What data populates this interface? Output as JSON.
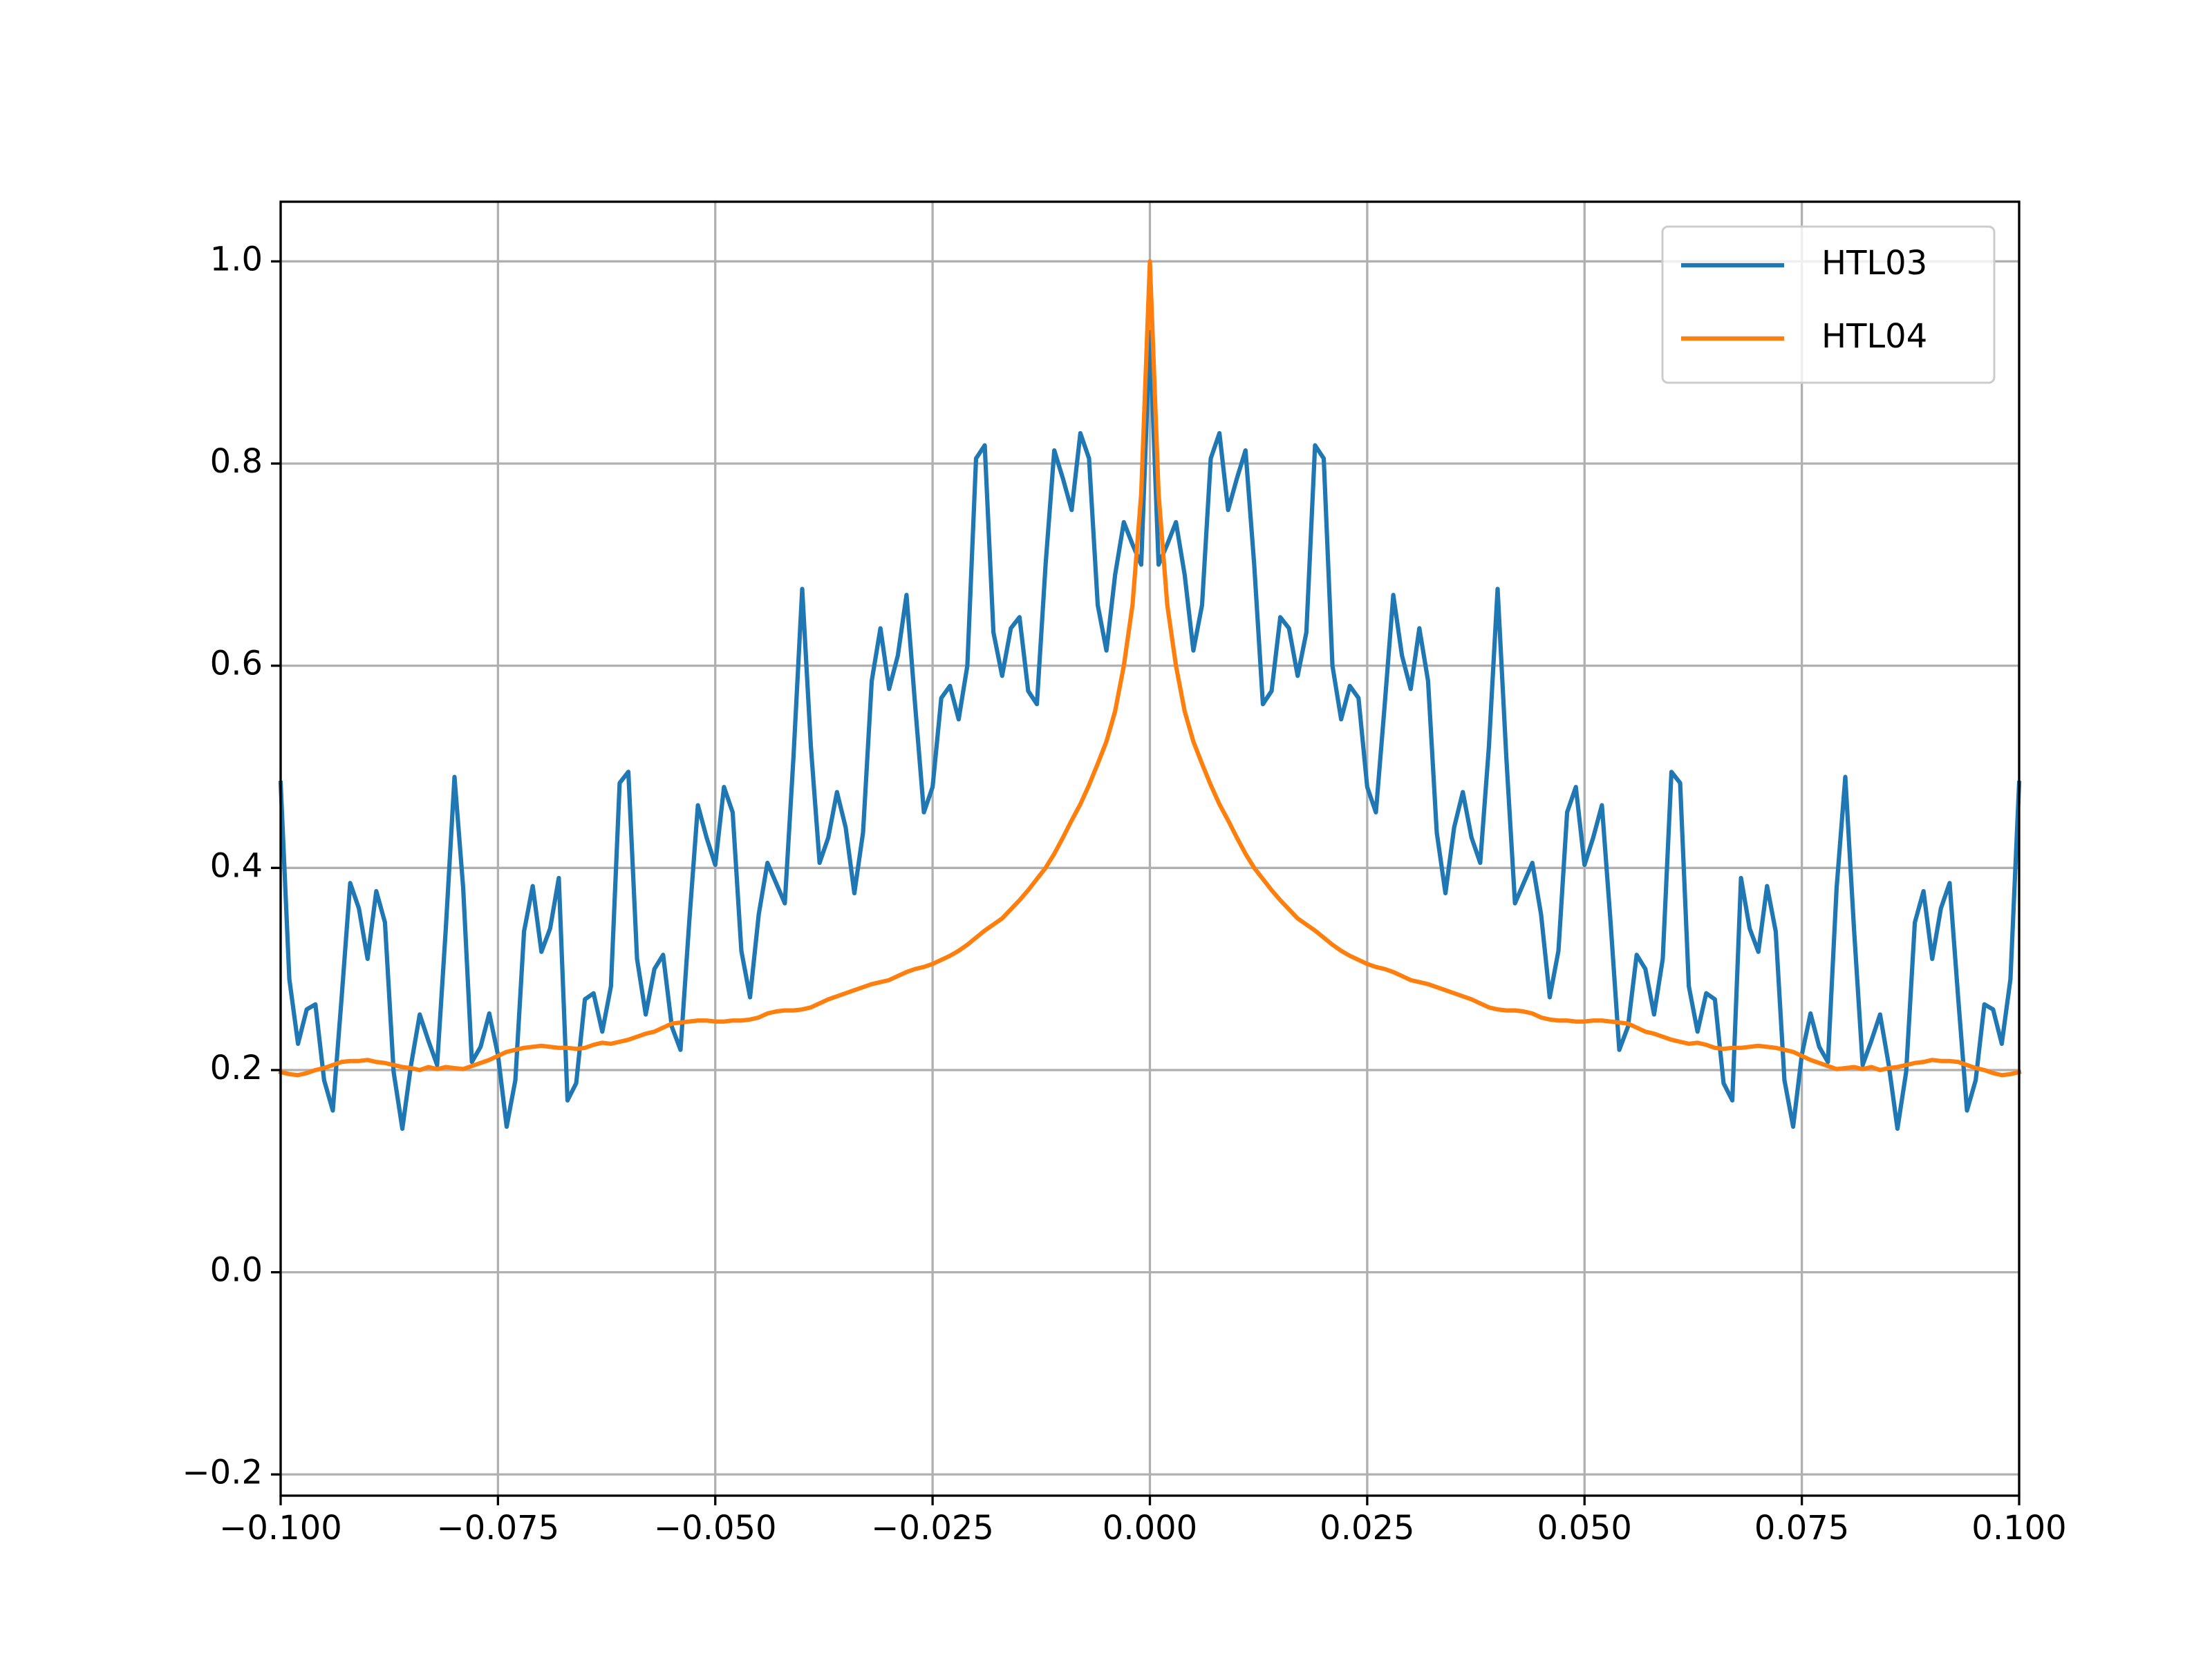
{
  "chart_data": {
    "type": "line",
    "x": [
      -0.1,
      -0.099,
      -0.098,
      -0.097,
      -0.096,
      -0.095,
      -0.094,
      -0.093,
      -0.092,
      -0.091,
      -0.09,
      -0.089,
      -0.088,
      -0.087,
      -0.086,
      -0.085,
      -0.084,
      -0.083,
      -0.082,
      -0.081,
      -0.08,
      -0.079,
      -0.078,
      -0.077,
      -0.076,
      -0.075,
      -0.074,
      -0.073,
      -0.072,
      -0.071,
      -0.07,
      -0.069,
      -0.068,
      -0.067,
      -0.066,
      -0.065,
      -0.064,
      -0.063,
      -0.062,
      -0.061,
      -0.06,
      -0.059,
      -0.058,
      -0.057,
      -0.056,
      -0.055,
      -0.054,
      -0.053,
      -0.052,
      -0.051,
      -0.05,
      -0.049,
      -0.048,
      -0.047,
      -0.046,
      -0.045,
      -0.044,
      -0.043,
      -0.042,
      -0.041,
      -0.04,
      -0.039,
      -0.038,
      -0.037,
      -0.036,
      -0.035,
      -0.034,
      -0.033,
      -0.032,
      -0.031,
      -0.03,
      -0.029,
      -0.028,
      -0.027,
      -0.026,
      -0.025,
      -0.024,
      -0.023,
      -0.022,
      -0.021,
      -0.02,
      -0.019,
      -0.018,
      -0.017,
      -0.016,
      -0.015,
      -0.014,
      -0.013,
      -0.012,
      -0.011,
      -0.01,
      -0.009,
      -0.008,
      -0.007,
      -0.006,
      -0.005,
      -0.004,
      -0.003,
      -0.002,
      -0.001,
      0,
      0.001,
      0.002,
      0.003,
      0.004,
      0.005,
      0.006,
      0.007,
      0.008,
      0.009,
      0.01,
      0.011,
      0.012,
      0.013,
      0.014,
      0.015,
      0.016,
      0.017,
      0.018,
      0.019,
      0.02,
      0.021,
      0.022,
      0.023,
      0.024,
      0.025,
      0.026,
      0.027,
      0.028,
      0.029,
      0.03,
      0.031,
      0.032,
      0.033,
      0.034,
      0.035,
      0.036,
      0.037,
      0.038,
      0.039,
      0.04,
      0.041,
      0.042,
      0.043,
      0.044,
      0.045,
      0.046,
      0.047,
      0.048,
      0.049,
      0.05,
      0.051,
      0.052,
      0.053,
      0.054,
      0.055,
      0.056,
      0.057,
      0.058,
      0.059,
      0.06,
      0.061,
      0.062,
      0.063,
      0.064,
      0.065,
      0.066,
      0.067,
      0.068,
      0.069,
      0.07,
      0.071,
      0.072,
      0.073,
      0.074,
      0.075,
      0.076,
      0.077,
      0.078,
      0.079,
      0.08,
      0.081,
      0.082,
      0.083,
      0.084,
      0.085,
      0.086,
      0.087,
      0.088,
      0.089,
      0.09,
      0.091,
      0.092,
      0.093,
      0.094,
      0.095,
      0.096,
      0.097,
      0.098,
      0.099,
      0.1
    ],
    "series": [
      {
        "name": "HTL03",
        "color": "#1f77b4",
        "values": [
          0.484,
          0.29,
          0.226,
          0.26,
          0.265,
          0.19,
          0.16,
          0.27,
          0.385,
          0.36,
          0.31,
          0.377,
          0.346,
          0.198,
          0.142,
          0.205,
          0.255,
          0.229,
          0.205,
          0.34,
          0.49,
          0.38,
          0.208,
          0.223,
          0.256,
          0.215,
          0.144,
          0.19,
          0.337,
          0.382,
          0.317,
          0.34,
          0.39,
          0.17,
          0.187,
          0.27,
          0.276,
          0.238,
          0.283,
          0.484,
          0.495,
          0.31,
          0.255,
          0.3,
          0.314,
          0.243,
          0.22,
          0.346,
          0.462,
          0.43,
          0.403,
          0.48,
          0.455,
          0.318,
          0.272,
          0.354,
          0.405,
          0.385,
          0.365,
          0.51,
          0.676,
          0.52,
          0.405,
          0.43,
          0.475,
          0.44,
          0.375,
          0.435,
          0.585,
          0.637,
          0.577,
          0.61,
          0.67,
          0.56,
          0.455,
          0.48,
          0.568,
          0.58,
          0.547,
          0.6,
          0.805,
          0.818,
          0.633,
          0.59,
          0.637,
          0.648,
          0.575,
          0.562,
          0.7,
          0.813,
          0.785,
          0.754,
          0.83,
          0.805,
          0.66,
          0.615,
          0.69,
          0.742,
          0.72,
          0.7,
          0.93,
          0.7,
          0.72,
          0.742,
          0.69,
          0.615,
          0.66,
          0.805,
          0.83,
          0.754,
          0.785,
          0.813,
          0.7,
          0.562,
          0.575,
          0.648,
          0.637,
          0.59,
          0.633,
          0.818,
          0.805,
          0.6,
          0.547,
          0.58,
          0.568,
          0.48,
          0.455,
          0.56,
          0.67,
          0.61,
          0.577,
          0.637,
          0.585,
          0.435,
          0.375,
          0.44,
          0.475,
          0.43,
          0.405,
          0.52,
          0.676,
          0.51,
          0.365,
          0.385,
          0.405,
          0.354,
          0.272,
          0.318,
          0.455,
          0.48,
          0.403,
          0.43,
          0.462,
          0.346,
          0.22,
          0.243,
          0.314,
          0.3,
          0.255,
          0.31,
          0.495,
          0.484,
          0.283,
          0.238,
          0.276,
          0.27,
          0.187,
          0.17,
          0.39,
          0.34,
          0.317,
          0.382,
          0.337,
          0.19,
          0.144,
          0.215,
          0.256,
          0.223,
          0.208,
          0.38,
          0.49,
          0.34,
          0.205,
          0.229,
          0.255,
          0.205,
          0.142,
          0.198,
          0.346,
          0.377,
          0.31,
          0.36,
          0.385,
          0.27,
          0.16,
          0.19,
          0.265,
          0.26,
          0.226,
          0.29,
          0.484
        ]
      },
      {
        "name": "HTL04",
        "color": "#ff7f0e",
        "values": [
          0.198,
          0.196,
          0.195,
          0.197,
          0.2,
          0.202,
          0.205,
          0.208,
          0.209,
          0.209,
          0.21,
          0.208,
          0.207,
          0.205,
          0.203,
          0.202,
          0.2,
          0.203,
          0.201,
          0.203,
          0.202,
          0.201,
          0.204,
          0.207,
          0.21,
          0.214,
          0.218,
          0.22,
          0.222,
          0.223,
          0.224,
          0.223,
          0.222,
          0.222,
          0.221,
          0.222,
          0.225,
          0.227,
          0.226,
          0.228,
          0.23,
          0.233,
          0.236,
          0.238,
          0.242,
          0.246,
          0.247,
          0.248,
          0.249,
          0.249,
          0.248,
          0.248,
          0.249,
          0.249,
          0.25,
          0.252,
          0.256,
          0.258,
          0.259,
          0.259,
          0.26,
          0.262,
          0.266,
          0.27,
          0.273,
          0.276,
          0.279,
          0.282,
          0.285,
          0.287,
          0.289,
          0.293,
          0.297,
          0.3,
          0.302,
          0.305,
          0.309,
          0.313,
          0.318,
          0.324,
          0.331,
          0.338,
          0.344,
          0.35,
          0.359,
          0.368,
          0.378,
          0.389,
          0.4,
          0.414,
          0.43,
          0.447,
          0.463,
          0.482,
          0.503,
          0.525,
          0.555,
          0.6,
          0.66,
          0.77,
          1.0,
          0.77,
          0.66,
          0.6,
          0.555,
          0.525,
          0.503,
          0.482,
          0.463,
          0.447,
          0.43,
          0.414,
          0.4,
          0.389,
          0.378,
          0.368,
          0.359,
          0.35,
          0.344,
          0.338,
          0.331,
          0.324,
          0.318,
          0.313,
          0.309,
          0.305,
          0.302,
          0.3,
          0.297,
          0.293,
          0.289,
          0.287,
          0.285,
          0.282,
          0.279,
          0.276,
          0.273,
          0.27,
          0.266,
          0.262,
          0.26,
          0.259,
          0.259,
          0.258,
          0.256,
          0.252,
          0.25,
          0.249,
          0.249,
          0.248,
          0.248,
          0.249,
          0.249,
          0.248,
          0.247,
          0.246,
          0.242,
          0.238,
          0.236,
          0.233,
          0.23,
          0.228,
          0.226,
          0.227,
          0.225,
          0.222,
          0.221,
          0.222,
          0.222,
          0.223,
          0.224,
          0.223,
          0.222,
          0.22,
          0.218,
          0.214,
          0.21,
          0.207,
          0.204,
          0.201,
          0.202,
          0.203,
          0.201,
          0.203,
          0.2,
          0.202,
          0.203,
          0.205,
          0.207,
          0.208,
          0.21,
          0.209,
          0.209,
          0.208,
          0.205,
          0.202,
          0.2,
          0.197,
          0.195,
          0.196,
          0.198
        ]
      }
    ],
    "xlim": [
      -0.1,
      0.1
    ],
    "ylim": [
      -0.221,
      1.059
    ],
    "xticks": [
      {
        "value": -0.1,
        "label": "−0.100"
      },
      {
        "value": -0.075,
        "label": "−0.075"
      },
      {
        "value": -0.05,
        "label": "−0.050"
      },
      {
        "value": -0.025,
        "label": "−0.025"
      },
      {
        "value": 0,
        "label": "0.000"
      },
      {
        "value": 0.025,
        "label": "0.025"
      },
      {
        "value": 0.05,
        "label": "0.050"
      },
      {
        "value": 0.075,
        "label": "0.075"
      },
      {
        "value": 0.1,
        "label": "0.100"
      }
    ],
    "yticks": [
      {
        "value": -0.2,
        "label": "−0.2"
      },
      {
        "value": 0,
        "label": "0.0"
      },
      0.2,
      0.4,
      0.6,
      0.8,
      {
        "value": 1,
        "label": "1.0"
      }
    ],
    "grid": true,
    "legend": "upper right"
  }
}
